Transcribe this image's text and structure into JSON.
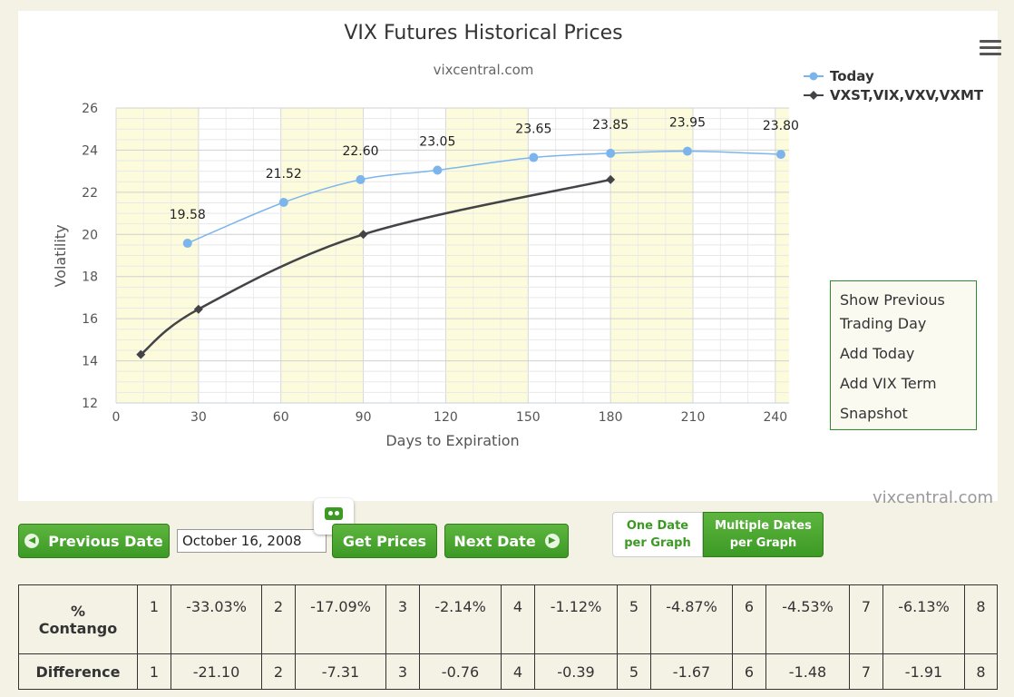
{
  "chart_data": {
    "type": "line",
    "title": "VIX Futures Historical Prices",
    "subtitle": "vixcentral.com",
    "xlabel": "Days to Expiration",
    "ylabel": "Volatility",
    "xlim": [
      0,
      245
    ],
    "ylim": [
      12,
      26
    ],
    "x_ticks": [
      0,
      30,
      60,
      90,
      120,
      150,
      180,
      210,
      240
    ],
    "y_ticks": [
      12,
      14,
      16,
      18,
      20,
      22,
      24,
      26
    ],
    "grid": true,
    "legend_position": "top-right",
    "series": [
      {
        "name": "Today",
        "color": "#7cb5ec",
        "marker": "circle",
        "x": [
          26,
          61,
          89,
          117,
          152,
          180,
          208,
          242
        ],
        "y": [
          19.58,
          21.52,
          22.6,
          23.05,
          23.65,
          23.85,
          23.95,
          23.8
        ],
        "labels": [
          "19.58",
          "21.52",
          "22.60",
          "23.05",
          "23.65",
          "23.85",
          "23.95",
          "23.80"
        ]
      },
      {
        "name": "VXST,VIX,VXV,VXMT",
        "color": "#434348",
        "marker": "diamond",
        "x": [
          9,
          30,
          90,
          180
        ],
        "y": [
          14.3,
          16.45,
          20.0,
          22.6
        ]
      }
    ]
  },
  "menu": {
    "items": [
      "Show Previous Trading Day",
      "Add Today",
      "Add VIX Term",
      "Snapshot"
    ]
  },
  "watermark": "vixcentral.com",
  "controls": {
    "prev_label": "Previous Date",
    "next_label": "Next Date",
    "get_label": "Get Prices",
    "date_value": "October 16, 2008",
    "toggle_one": [
      "One Date",
      "per Graph"
    ],
    "toggle_multi": [
      "Multiple Dates",
      "per Graph"
    ]
  },
  "table": {
    "row1_label": [
      "%",
      "Contango"
    ],
    "row2_label": "Difference",
    "indices": [
      "1",
      "2",
      "3",
      "4",
      "5",
      "6",
      "7",
      "8"
    ],
    "contango": [
      "-33.03%",
      "-17.09%",
      "-2.14%",
      "-1.12%",
      "-4.87%",
      "-4.53%",
      "-6.13%"
    ],
    "difference": [
      "-21.10",
      "-7.31",
      "-0.76",
      "-0.39",
      "-1.67",
      "-1.48",
      "-1.91"
    ]
  }
}
